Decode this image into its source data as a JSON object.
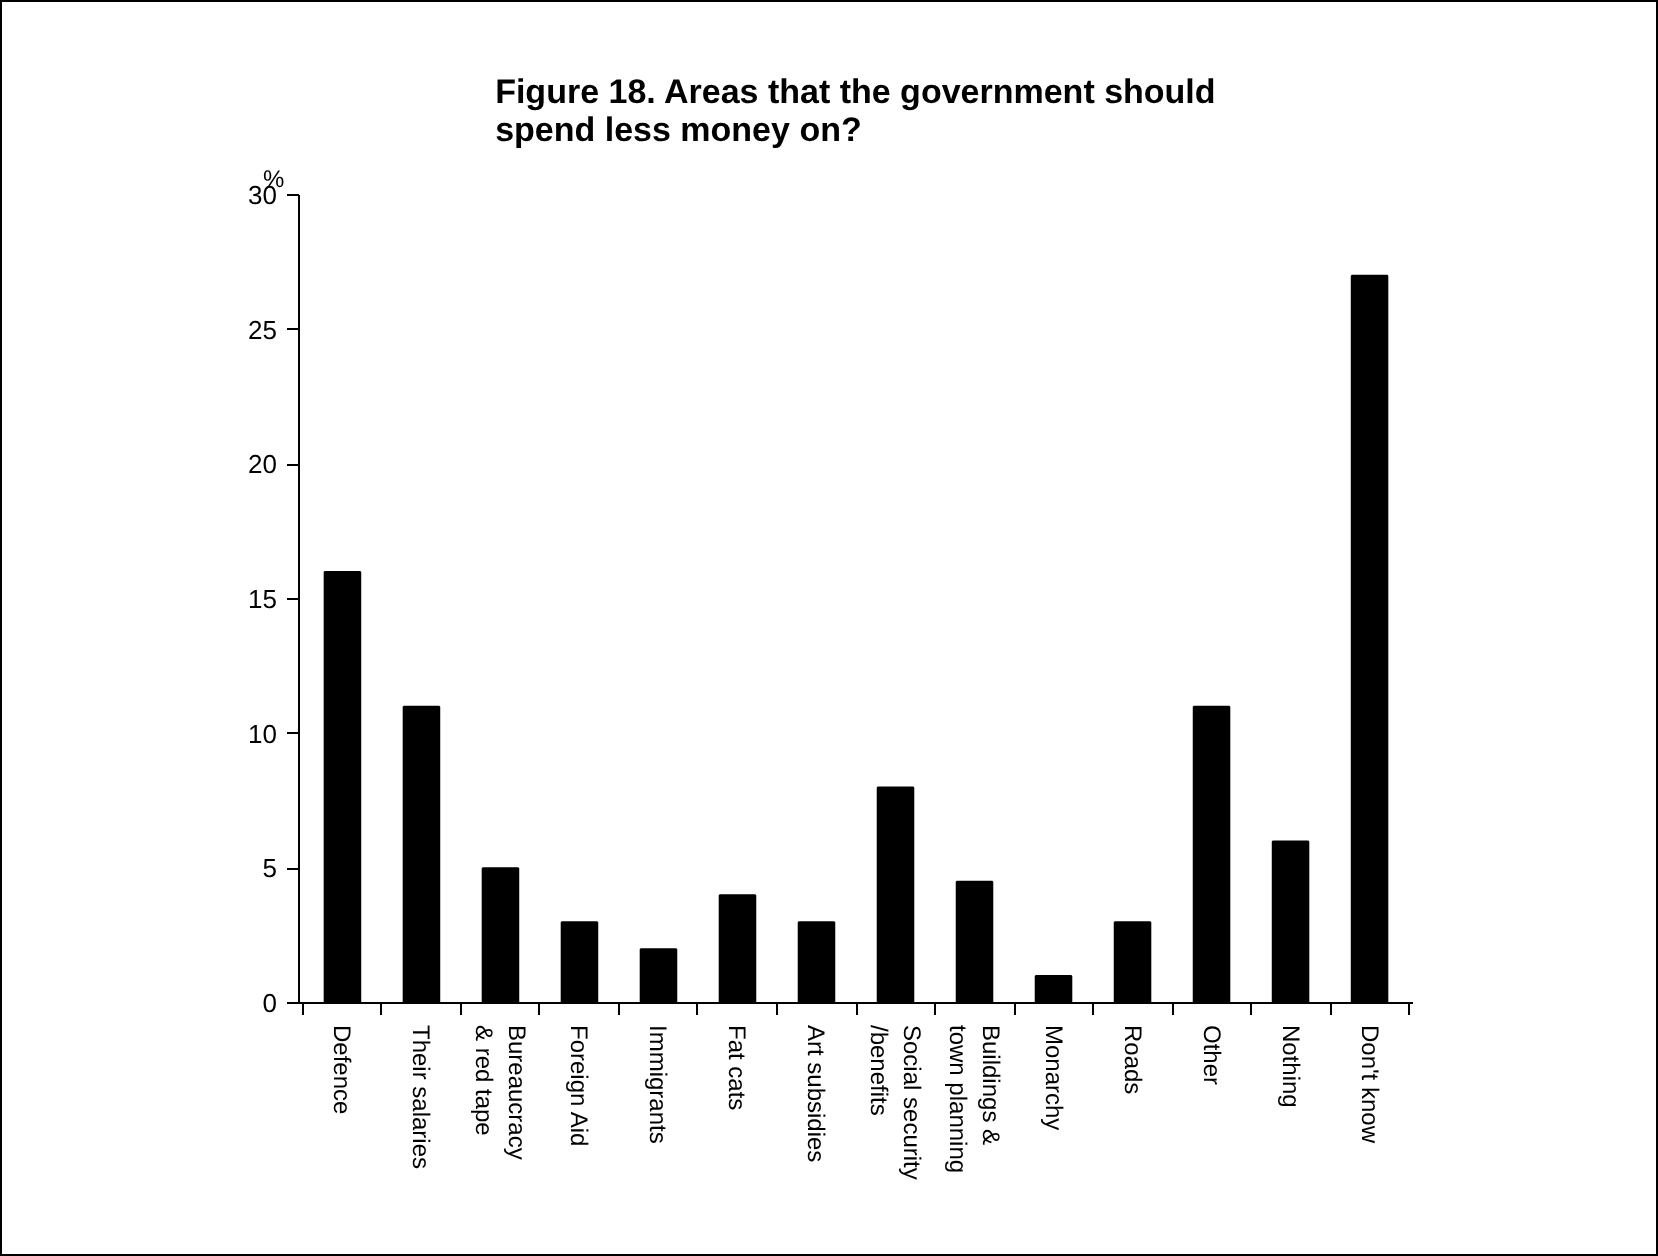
{
  "chart_data": {
    "type": "bar",
    "title": "Figure 18. Areas that the government should\nspend less money on?",
    "ylabel": "%",
    "categories": [
      "Defence",
      "Their salaries",
      "Bureaucracy\n& red tape",
      "Foreign Aid",
      "Immigrants",
      "Fat cats",
      "Art subsidies",
      "Social security\n/benefits",
      "Buildings &\ntown planning",
      "Monarchy",
      "Roads",
      "Other",
      "Nothing",
      "Don't know"
    ],
    "values": [
      16,
      11,
      5,
      3,
      2,
      4,
      3,
      8,
      4.5,
      1,
      3,
      11,
      6,
      27
    ],
    "color": "#000000",
    "ylim": [
      0,
      30
    ],
    "yticks": [
      0,
      5,
      10,
      15,
      20,
      25,
      30
    ],
    "grid": false
  }
}
